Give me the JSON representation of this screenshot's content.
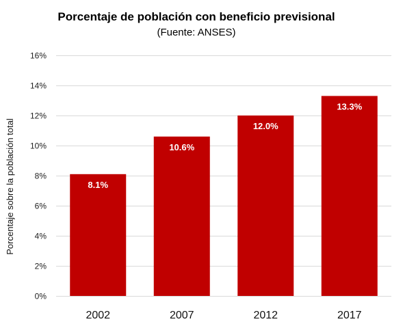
{
  "chart_data": {
    "type": "bar",
    "title": "Porcentaje de población con beneficio previsional",
    "subtitle": "(Fuente: ANSES)",
    "xlabel": "",
    "ylabel": "Porcentaje sobre la población total",
    "categories": [
      "2002",
      "2007",
      "2012",
      "2017"
    ],
    "values": [
      8.1,
      10.6,
      12.0,
      13.3
    ],
    "data_labels": [
      "8.1%",
      "10.6%",
      "12.0%",
      "13.3%"
    ],
    "ylim": [
      0,
      16
    ],
    "yticks": [
      0,
      2,
      4,
      6,
      8,
      10,
      12,
      14,
      16
    ],
    "ytick_labels": [
      "0%",
      "2%",
      "4%",
      "6%",
      "8%",
      "10%",
      "12%",
      "14%",
      "16%"
    ],
    "grid": true,
    "legend": "none",
    "bar_color": "#c00000",
    "label_color": "#ffffff"
  }
}
